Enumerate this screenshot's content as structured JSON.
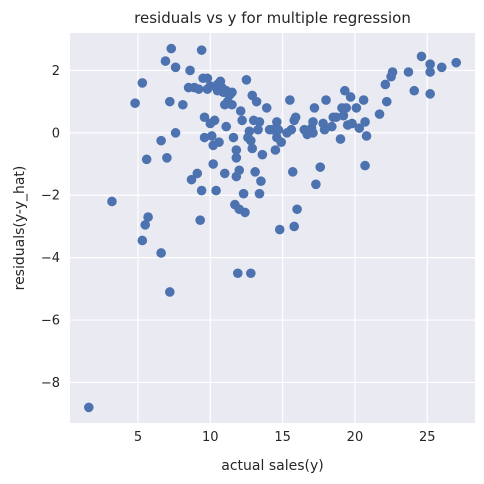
{
  "chart_data": {
    "type": "scatter",
    "title": "residuals vs y for multiple regression",
    "xlabel": "actual sales(y)",
    "ylabel": "residuals(y-y_hat)",
    "xlim": [
      0.3,
      28.3
    ],
    "ylim": [
      -9.3,
      3.2
    ],
    "xticks": [
      5,
      10,
      15,
      20,
      25
    ],
    "yticks": [
      -8,
      -6,
      -4,
      -2,
      0,
      2
    ],
    "grid": true,
    "colors": {
      "background": "#eaeaf2",
      "point": "#4c72b0",
      "grid": "#ffffff"
    },
    "points": [
      [
        1.6,
        -8.8
      ],
      [
        3.2,
        -2.2
      ],
      [
        4.8,
        0.95
      ],
      [
        5.3,
        1.6
      ],
      [
        5.3,
        -3.45
      ],
      [
        5.5,
        -2.95
      ],
      [
        5.6,
        -0.85
      ],
      [
        5.7,
        -2.7
      ],
      [
        6.6,
        -0.25
      ],
      [
        6.6,
        -3.85
      ],
      [
        6.9,
        2.3
      ],
      [
        7.0,
        -0.8
      ],
      [
        7.2,
        1.0
      ],
      [
        7.2,
        -5.1
      ],
      [
        7.3,
        2.7
      ],
      [
        7.6,
        2.1
      ],
      [
        7.6,
        0.0
      ],
      [
        8.1,
        0.9
      ],
      [
        8.5,
        1.45
      ],
      [
        8.6,
        2.0
      ],
      [
        8.7,
        -1.5
      ],
      [
        8.9,
        1.45
      ],
      [
        9.1,
        -1.3
      ],
      [
        9.2,
        1.4
      ],
      [
        9.3,
        -2.8
      ],
      [
        9.4,
        2.65
      ],
      [
        9.4,
        -1.85
      ],
      [
        9.5,
        1.75
      ],
      [
        9.6,
        0.5
      ],
      [
        9.6,
        -0.15
      ],
      [
        9.8,
        1.75
      ],
      [
        9.8,
        1.4
      ],
      [
        10.0,
        1.5
      ],
      [
        10.0,
        0.3
      ],
      [
        10.1,
        -0.1
      ],
      [
        10.2,
        -1.0
      ],
      [
        10.2,
        -0.4
      ],
      [
        10.3,
        0.4
      ],
      [
        10.4,
        -1.85
      ],
      [
        10.5,
        1.55
      ],
      [
        10.5,
        1.35
      ],
      [
        10.6,
        -0.3
      ],
      [
        10.7,
        1.65
      ],
      [
        10.8,
        1.45
      ],
      [
        10.9,
        1.3
      ],
      [
        11.0,
        0.9
      ],
      [
        11.0,
        -1.3
      ],
      [
        11.1,
        1.35
      ],
      [
        11.1,
        0.2
      ],
      [
        11.2,
        1.0
      ],
      [
        11.3,
        1.2
      ],
      [
        11.4,
        1.25
      ],
      [
        11.5,
        1.3
      ],
      [
        11.5,
        0.9
      ],
      [
        11.6,
        -0.15
      ],
      [
        11.7,
        -2.3
      ],
      [
        11.8,
        -0.55
      ],
      [
        11.8,
        -0.8
      ],
      [
        11.8,
        -1.4
      ],
      [
        11.9,
        -4.5
      ],
      [
        12.0,
        -1.2
      ],
      [
        12.0,
        -2.45
      ],
      [
        12.1,
        0.7
      ],
      [
        12.2,
        0.4
      ],
      [
        12.3,
        -1.95
      ],
      [
        12.4,
        -2.55
      ],
      [
        12.5,
        1.7
      ],
      [
        12.6,
        -0.15
      ],
      [
        12.7,
        0.05
      ],
      [
        12.8,
        -4.5
      ],
      [
        12.8,
        -0.25
      ],
      [
        12.9,
        1.2
      ],
      [
        12.9,
        -0.5
      ],
      [
        13.0,
        0.4
      ],
      [
        13.1,
        -1.25
      ],
      [
        13.2,
        1.0
      ],
      [
        13.3,
        0.1
      ],
      [
        13.4,
        -1.95
      ],
      [
        13.4,
        0.35
      ],
      [
        13.5,
        -1.55
      ],
      [
        13.6,
        -0.7
      ],
      [
        13.9,
        0.8
      ],
      [
        14.1,
        0.1
      ],
      [
        14.3,
        0.1
      ],
      [
        14.5,
        -0.55
      ],
      [
        14.6,
        0.35
      ],
      [
        14.6,
        -0.15
      ],
      [
        14.7,
        0.1
      ],
      [
        14.8,
        -3.1
      ],
      [
        14.9,
        -0.3
      ],
      [
        15.3,
        0.0
      ],
      [
        15.5,
        1.05
      ],
      [
        15.6,
        0.1
      ],
      [
        15.7,
        -1.25
      ],
      [
        15.8,
        -3.0
      ],
      [
        15.8,
        0.4
      ],
      [
        15.9,
        0.5
      ],
      [
        16.0,
        -2.45
      ],
      [
        16.5,
        0.1
      ],
      [
        16.7,
        -0.05
      ],
      [
        17.0,
        0.15
      ],
      [
        17.1,
        0.35
      ],
      [
        17.1,
        0.0
      ],
      [
        17.2,
        0.8
      ],
      [
        17.3,
        -1.65
      ],
      [
        17.6,
        -1.1
      ],
      [
        17.8,
        0.3
      ],
      [
        17.9,
        0.1
      ],
      [
        18.0,
        1.05
      ],
      [
        18.4,
        0.2
      ],
      [
        18.5,
        0.5
      ],
      [
        18.7,
        0.5
      ],
      [
        19.0,
        -0.2
      ],
      [
        19.1,
        0.8
      ],
      [
        19.2,
        0.55
      ],
      [
        19.3,
        1.35
      ],
      [
        19.4,
        0.8
      ],
      [
        19.5,
        0.25
      ],
      [
        19.7,
        1.15
      ],
      [
        19.8,
        0.3
      ],
      [
        20.1,
        0.8
      ],
      [
        20.3,
        0.15
      ],
      [
        20.6,
        1.05
      ],
      [
        20.7,
        0.35
      ],
      [
        20.7,
        -1.05
      ],
      [
        20.8,
        -0.1
      ],
      [
        21.7,
        0.6
      ],
      [
        22.1,
        1.55
      ],
      [
        22.2,
        1.0
      ],
      [
        22.5,
        1.8
      ],
      [
        22.6,
        1.95
      ],
      [
        23.7,
        1.95
      ],
      [
        24.1,
        1.35
      ],
      [
        24.6,
        2.45
      ],
      [
        25.2,
        2.2
      ],
      [
        25.2,
        1.95
      ],
      [
        25.2,
        1.25
      ],
      [
        26.0,
        2.1
      ],
      [
        27.0,
        2.25
      ]
    ]
  }
}
